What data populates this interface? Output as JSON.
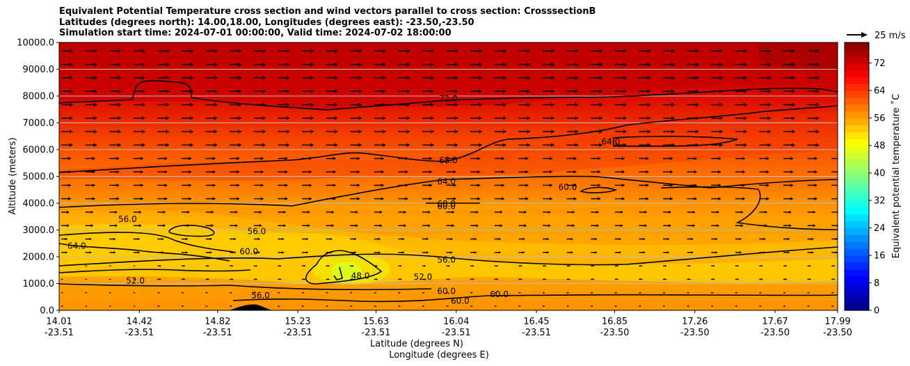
{
  "title_lines": [
    "Equivalent Potential Temperature cross section and wind vectors parallel to cross section: CrosssectionB",
    "Latitudes (degrees north): 14.00,18.00, Longitudes (degrees east): -23.50,-23.50",
    "Simulation start time: 2024-07-01 00:00:00, Valid time: 2024-07-02 18:00:00"
  ],
  "chart_data": {
    "type": "filled-contour cross section with wind vectors",
    "y_axis": {
      "label": "Altitude (meters)",
      "ylim": [
        0,
        10000
      ],
      "ticks": [
        0,
        1000,
        2000,
        3000,
        4000,
        5000,
        6000,
        7000,
        8000,
        9000,
        10000
      ],
      "tick_labels": [
        "0.0",
        "1000.0",
        "2000.0",
        "3000.0",
        "4000.0",
        "5000.0",
        "6000.0",
        "7000.0",
        "8000.0",
        "9000.0",
        "10000.0"
      ],
      "gridlines": true
    },
    "x_axis": {
      "label_line1": "Latitude (degrees N)",
      "label_line2": "Longitude (degrees E)",
      "xlim": [
        14.01,
        17.99
      ],
      "ticks": [
        {
          "lat": "14.01",
          "lon": "-23.51",
          "pos": 14.01
        },
        {
          "lat": "14.42",
          "lon": "-23.51",
          "pos": 14.42
        },
        {
          "lat": "14.82",
          "lon": "-23.51",
          "pos": 14.82
        },
        {
          "lat": "15.23",
          "lon": "-23.51",
          "pos": 15.23
        },
        {
          "lat": "15.63",
          "lon": "-23.51",
          "pos": 15.63
        },
        {
          "lat": "16.04",
          "lon": "-23.51",
          "pos": 16.04
        },
        {
          "lat": "16.45",
          "lon": "-23.51",
          "pos": 16.45
        },
        {
          "lat": "16.85",
          "lon": "-23.50",
          "pos": 16.85
        },
        {
          "lat": "17.26",
          "lon": "-23.50",
          "pos": 17.26
        },
        {
          "lat": "17.67",
          "lon": "-23.50",
          "pos": 17.67
        },
        {
          "lat": "17.99",
          "lon": "-23.50",
          "pos": 17.99
        }
      ]
    },
    "colorbar": {
      "label": "Equivalent potential temperature $^\\circ$C",
      "label_display": "Equivalent potential temperature ˚C",
      "range": [
        0,
        78
      ],
      "ticks": [
        0,
        8,
        16,
        24,
        32,
        40,
        48,
        56,
        64,
        72
      ],
      "colormap": "jet"
    },
    "quiver_key": {
      "label": "25 m/s",
      "speed": 25
    },
    "contour_labels": [
      {
        "text": "72.0",
        "lat": 16.0,
        "alt": 7900
      },
      {
        "text": "68.0",
        "lat": 16.0,
        "alt": 5600
      },
      {
        "text": "64.0",
        "lat": 15.99,
        "alt": 4800
      },
      {
        "text": "60.0",
        "lat": 15.99,
        "alt": 3980
      },
      {
        "text": "60.0",
        "lat": 15.99,
        "alt": 3880
      },
      {
        "text": "56.0",
        "lat": 15.99,
        "alt": 1880
      },
      {
        "text": "60.0",
        "lat": 15.99,
        "alt": 720
      },
      {
        "text": "64.0",
        "lat": 16.83,
        "alt": 6300
      },
      {
        "text": "60.0",
        "lat": 16.61,
        "alt": 4600
      },
      {
        "text": "56.0",
        "lat": 14.36,
        "alt": 3400
      },
      {
        "text": "56.0",
        "lat": 15.02,
        "alt": 2950
      },
      {
        "text": "60.0",
        "lat": 14.98,
        "alt": 2200
      },
      {
        "text": "64.0",
        "lat": 14.1,
        "alt": 2400
      },
      {
        "text": "52.0",
        "lat": 14.4,
        "alt": 1100
      },
      {
        "text": "48.0",
        "lat": 15.55,
        "alt": 1290
      },
      {
        "text": "52.0",
        "lat": 15.87,
        "alt": 1250
      },
      {
        "text": "56.0",
        "lat": 15.04,
        "alt": 560
      },
      {
        "text": "60.0",
        "lat": 16.06,
        "alt": 350
      },
      {
        "text": "60.0",
        "lat": 16.26,
        "alt": 600
      }
    ]
  }
}
